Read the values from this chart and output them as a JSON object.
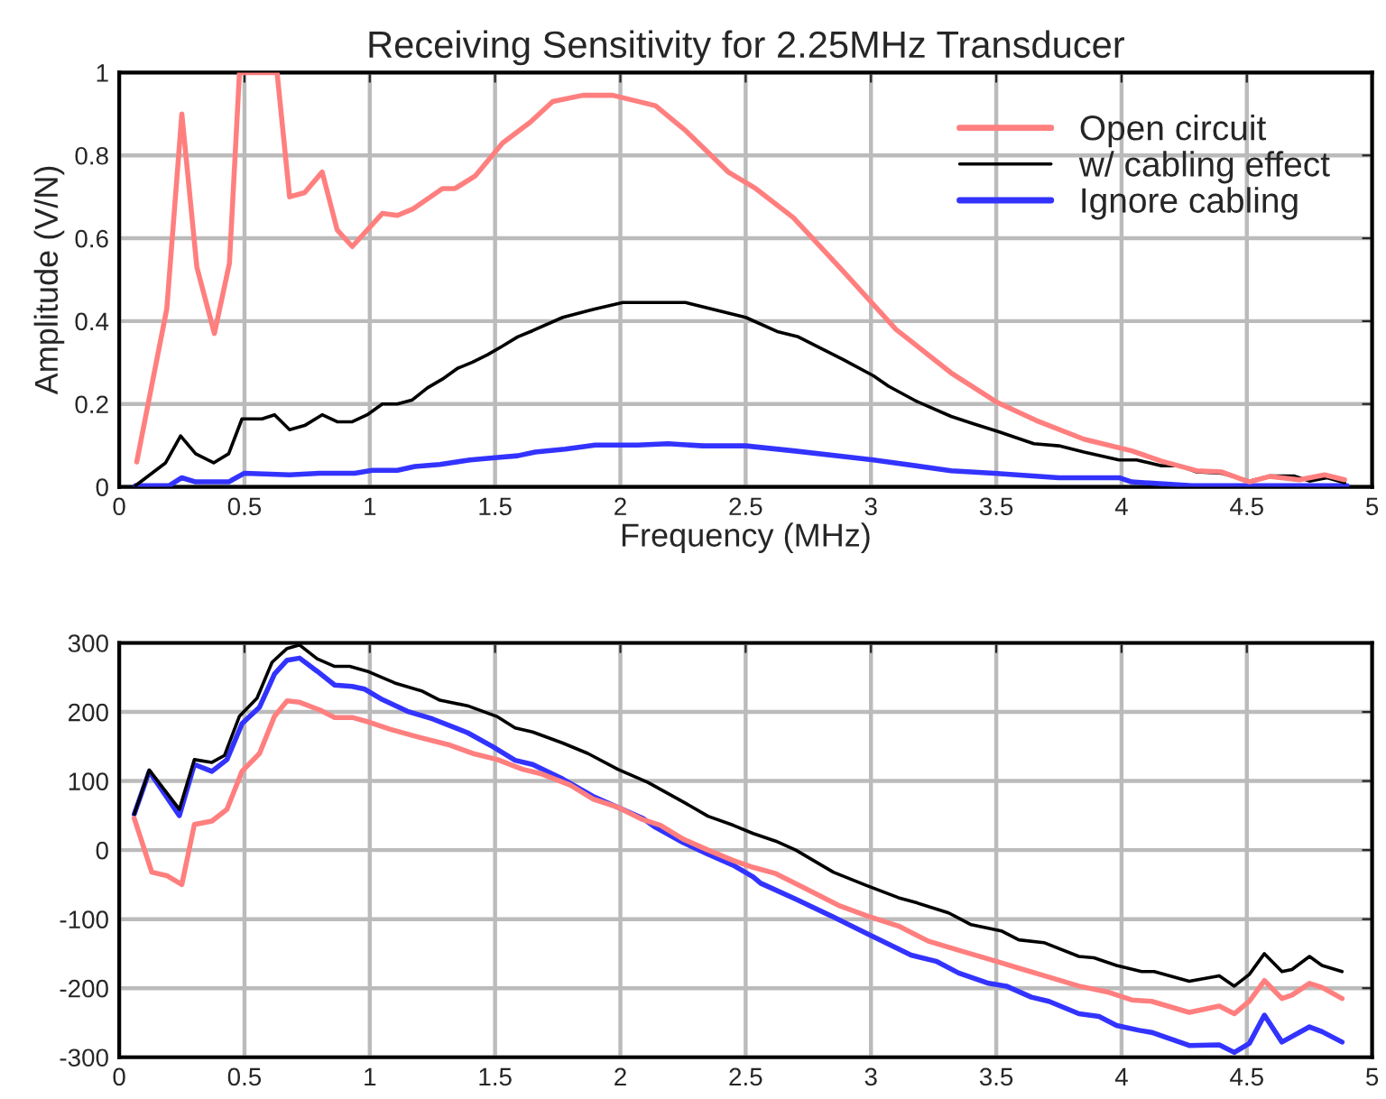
{
  "chart_data": [
    {
      "type": "line",
      "title": "Receiving Sensitivity for 2.25MHz Transducer",
      "xlabel": "Frequency (MHz)",
      "ylabel": "Amplitude (V/N)",
      "xlim": [
        0,
        5
      ],
      "xticks": [
        0,
        0.5,
        1,
        1.5,
        2,
        2.5,
        3,
        3.5,
        4,
        4.5,
        5
      ],
      "ylim": [
        0,
        1
      ],
      "yticks": [
        0,
        0.2,
        0.4,
        0.6,
        0.8,
        1
      ],
      "grid": true,
      "legend": "top right",
      "series": [
        {
          "name": "Open circuit",
          "color": "#ff7f7f",
          "x": [
            0.07,
            0.19,
            0.25,
            0.31,
            0.38,
            0.44,
            0.48,
            0.63,
            0.68,
            0.74,
            0.81,
            0.87,
            0.93,
            1.05,
            1.11,
            1.17,
            1.29,
            1.34,
            1.42,
            1.53,
            1.64,
            1.73,
            1.85,
            1.97,
            2.14,
            2.26,
            2.43,
            2.54,
            2.69,
            2.89,
            3.1,
            3.32,
            3.5,
            3.66,
            3.85,
            4.04,
            4.16,
            4.3,
            4.4,
            4.51,
            4.59,
            4.71,
            4.81,
            4.89
          ],
          "values": [
            0.06,
            0.43,
            0.9,
            0.53,
            0.37,
            0.54,
            1.0,
            1.0,
            0.7,
            0.71,
            0.76,
            0.62,
            0.58,
            0.66,
            0.655,
            0.67,
            0.72,
            0.72,
            0.75,
            0.83,
            0.88,
            0.93,
            0.945,
            0.945,
            0.92,
            0.86,
            0.76,
            0.72,
            0.65,
            0.52,
            0.38,
            0.275,
            0.205,
            0.16,
            0.115,
            0.087,
            0.062,
            0.039,
            0.036,
            0.012,
            0.025,
            0.017,
            0.029,
            0.017
          ]
        },
        {
          "name": "w/ cabling effect",
          "color": "#000000",
          "x": [
            0.065,
            0.185,
            0.245,
            0.305,
            0.377,
            0.437,
            0.49,
            0.57,
            0.62,
            0.68,
            0.74,
            0.81,
            0.87,
            0.93,
            0.99,
            1.05,
            1.11,
            1.17,
            1.23,
            1.29,
            1.35,
            1.41,
            1.47,
            1.53,
            1.59,
            1.65,
            1.77,
            1.89,
            2.01,
            2.26,
            2.5,
            2.63,
            2.71,
            2.89,
            3.01,
            3.07,
            3.18,
            3.32,
            3.41,
            3.51,
            3.65,
            3.75,
            3.85,
            3.99,
            4.06,
            4.16,
            4.23,
            4.3,
            4.4,
            4.51,
            4.59,
            4.69,
            4.75,
            4.82,
            4.89
          ],
          "values": [
            0.003,
            0.058,
            0.123,
            0.08,
            0.058,
            0.08,
            0.164,
            0.164,
            0.174,
            0.138,
            0.148,
            0.174,
            0.157,
            0.157,
            0.174,
            0.2,
            0.2,
            0.21,
            0.239,
            0.26,
            0.286,
            0.301,
            0.319,
            0.34,
            0.362,
            0.377,
            0.409,
            0.428,
            0.445,
            0.445,
            0.409,
            0.374,
            0.362,
            0.307,
            0.268,
            0.243,
            0.207,
            0.17,
            0.152,
            0.133,
            0.104,
            0.099,
            0.084,
            0.065,
            0.065,
            0.051,
            0.051,
            0.036,
            0.033,
            0.014,
            0.026,
            0.026,
            0.014,
            0.022,
            0.01
          ]
        },
        {
          "name": "Ignore cabling",
          "color": "#3333ff",
          "x": [
            0.065,
            0.2,
            0.25,
            0.305,
            0.437,
            0.5,
            0.68,
            0.8,
            0.94,
            1.01,
            1.11,
            1.18,
            1.28,
            1.4,
            1.49,
            1.59,
            1.66,
            1.78,
            1.9,
            2.07,
            2.19,
            2.33,
            2.5,
            2.69,
            3.01,
            3.32,
            3.49,
            3.75,
            3.99,
            4.04,
            4.28,
            4.9
          ],
          "values": [
            0.003,
            0.003,
            0.022,
            0.012,
            0.012,
            0.033,
            0.029,
            0.033,
            0.033,
            0.04,
            0.04,
            0.049,
            0.054,
            0.065,
            0.07,
            0.075,
            0.084,
            0.091,
            0.101,
            0.101,
            0.104,
            0.099,
            0.099,
            0.087,
            0.065,
            0.039,
            0.033,
            0.022,
            0.022,
            0.012,
            0.003,
            0.003
          ]
        }
      ]
    },
    {
      "type": "line",
      "xlim": [
        0,
        5
      ],
      "xticks": [
        0,
        0.5,
        1,
        1.5,
        2,
        2.5,
        3,
        3.5,
        4,
        4.5,
        5
      ],
      "ylim": [
        -300,
        300
      ],
      "yticks": [
        -300,
        -200,
        -100,
        0,
        100,
        200,
        300
      ],
      "grid": true,
      "series": [
        {
          "color": "#ff7f7f",
          "x": [
            0.06,
            0.13,
            0.19,
            0.25,
            0.3,
            0.37,
            0.43,
            0.49,
            0.56,
            0.62,
            0.67,
            0.72,
            0.8,
            0.86,
            0.93,
            1.0,
            1.08,
            1.2,
            1.32,
            1.41,
            1.51,
            1.61,
            1.68,
            1.8,
            1.89,
            1.99,
            2.09,
            2.16,
            2.25,
            2.35,
            2.45,
            2.53,
            2.62,
            2.73,
            2.87,
            2.99,
            3.11,
            3.23,
            3.35,
            3.5,
            3.59,
            3.71,
            3.83,
            3.95,
            4.04,
            4.12,
            4.27,
            4.39,
            4.45,
            4.51,
            4.57,
            4.64,
            4.68,
            4.75,
            4.8,
            4.88
          ],
          "values": [
            46,
            -32,
            -37,
            -50,
            37,
            42,
            59,
            114,
            140,
            194,
            216,
            214,
            203,
            192,
            192,
            185,
            175,
            163,
            152,
            140,
            131,
            117,
            111,
            94,
            74,
            62,
            44,
            36,
            16,
            0,
            -15,
            -25,
            -34,
            -54,
            -80,
            -96,
            -110,
            -132,
            -145,
            -161,
            -171,
            -184,
            -197,
            -206,
            -217,
            -219,
            -235,
            -226,
            -237,
            -219,
            -189,
            -215,
            -210,
            -193,
            -199,
            -215
          ]
        },
        {
          "color": "#000000",
          "x": [
            0.06,
            0.12,
            0.24,
            0.3,
            0.37,
            0.42,
            0.48,
            0.55,
            0.61,
            0.67,
            0.72,
            0.79,
            0.86,
            0.92,
            0.99,
            1.1,
            1.21,
            1.28,
            1.39,
            1.51,
            1.58,
            1.65,
            1.77,
            1.87,
            1.99,
            2.11,
            2.25,
            2.35,
            2.45,
            2.53,
            2.62,
            2.7,
            2.85,
            2.98,
            3.11,
            3.18,
            3.31,
            3.4,
            3.52,
            3.59,
            3.69,
            3.83,
            3.89,
            3.98,
            4.08,
            4.13,
            4.27,
            4.39,
            4.45,
            4.51,
            4.57,
            4.64,
            4.68,
            4.75,
            4.8,
            4.88
          ],
          "values": [
            52,
            116,
            59,
            131,
            127,
            137,
            194,
            220,
            272,
            292,
            297,
            277,
            266,
            266,
            259,
            242,
            230,
            217,
            209,
            193,
            177,
            171,
            155,
            140,
            117,
            98,
            70,
            49,
            36,
            24,
            13,
            0,
            -32,
            -51,
            -69,
            -76,
            -91,
            -108,
            -117,
            -130,
            -134,
            -154,
            -156,
            -167,
            -176,
            -176,
            -190,
            -182,
            -197,
            -180,
            -150,
            -176,
            -173,
            -154,
            -167,
            -176
          ]
        },
        {
          "color": "#3333ff",
          "x": [
            0.06,
            0.12,
            0.24,
            0.3,
            0.37,
            0.43,
            0.49,
            0.56,
            0.62,
            0.67,
            0.72,
            0.79,
            0.86,
            0.93,
            0.98,
            1.05,
            1.15,
            1.25,
            1.39,
            1.49,
            1.58,
            1.65,
            1.77,
            1.89,
            1.99,
            2.09,
            2.14,
            2.25,
            2.35,
            2.45,
            2.53,
            2.56,
            2.7,
            2.85,
            2.99,
            3.16,
            3.26,
            3.35,
            3.47,
            3.54,
            3.64,
            3.71,
            3.83,
            3.91,
            3.98,
            4.07,
            4.12,
            4.27,
            4.39,
            4.45,
            4.51,
            4.57,
            4.64,
            4.75,
            4.8,
            4.88
          ],
          "values": [
            52,
            114,
            50,
            124,
            114,
            131,
            183,
            207,
            255,
            275,
            278,
            259,
            239,
            237,
            233,
            218,
            201,
            190,
            170,
            150,
            130,
            124,
            103,
            78,
            62,
            46,
            33,
            11,
            -6,
            -22,
            -39,
            -48,
            -71,
            -97,
            -122,
            -152,
            -161,
            -178,
            -193,
            -197,
            -213,
            -219,
            -237,
            -241,
            -254,
            -261,
            -264,
            -283,
            -282,
            -293,
            -280,
            -239,
            -278,
            -256,
            -263,
            -278
          ]
        }
      ]
    }
  ]
}
